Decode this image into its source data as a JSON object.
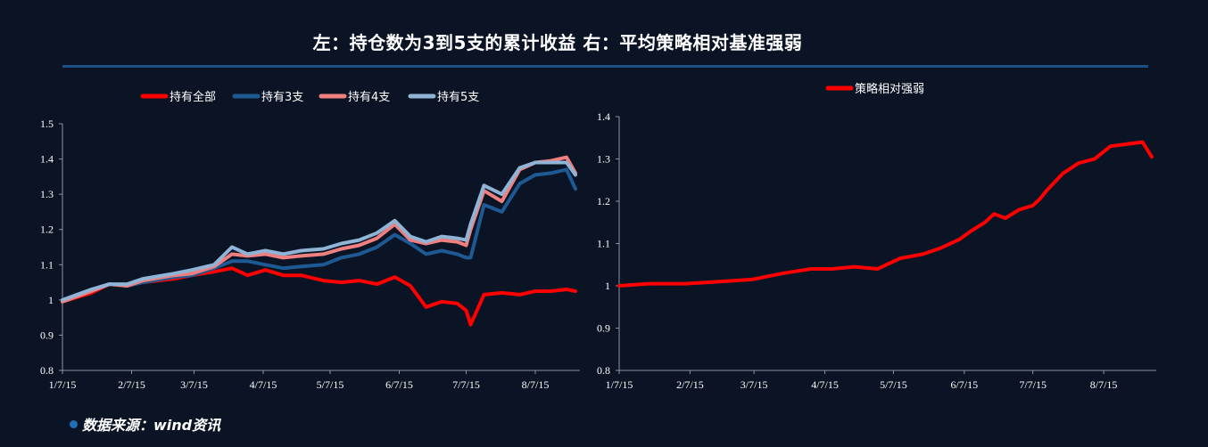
{
  "title": "左：持仓数为3到5支的累计收益  右：平均策略相对基准强弱",
  "source": "数据来源：wind资讯",
  "chart_data": [
    {
      "type": "line",
      "title": "",
      "xlabel": "",
      "ylabel": "",
      "x_tick_labels": [
        "1/7/15",
        "2/7/15",
        "3/7/15",
        "4/7/15",
        "5/7/15",
        "6/7/15",
        "7/7/15",
        "8/7/15"
      ],
      "y_tick_labels": [
        "0.8",
        "0.9",
        "1",
        "1.1",
        "1.2",
        "1.3",
        "1.4",
        "1.5"
      ],
      "ylim": [
        0.8,
        1.5
      ],
      "grid": false,
      "legend_position": "top",
      "x_dates": [
        "2015-01-07",
        "2015-01-20",
        "2015-01-28",
        "2015-02-05",
        "2015-02-12",
        "2015-02-26",
        "2015-03-06",
        "2015-03-16",
        "2015-03-24",
        "2015-03-31",
        "2015-04-08",
        "2015-04-16",
        "2015-04-24",
        "2015-05-04",
        "2015-05-12",
        "2015-05-20",
        "2015-05-28",
        "2015-06-05",
        "2015-06-12",
        "2015-06-19",
        "2015-06-26",
        "2015-07-03",
        "2015-07-07",
        "2015-07-09",
        "2015-07-15",
        "2015-07-23",
        "2015-07-31",
        "2015-08-07",
        "2015-08-14",
        "2015-08-21",
        "2015-08-25"
      ],
      "series": [
        {
          "name": "持有全部",
          "color": "#ff0000",
          "values": [
            0.995,
            1.02,
            1.045,
            1.04,
            1.05,
            1.06,
            1.07,
            1.08,
            1.09,
            1.07,
            1.085,
            1.07,
            1.07,
            1.055,
            1.05,
            1.055,
            1.045,
            1.065,
            1.04,
            0.98,
            0.995,
            0.99,
            0.97,
            0.93,
            1.015,
            1.02,
            1.015,
            1.025,
            1.025,
            1.03,
            1.025
          ]
        },
        {
          "name": "持有3支",
          "color": "#1d5a93",
          "values": [
            0.995,
            1.025,
            1.045,
            1.04,
            1.05,
            1.065,
            1.07,
            1.09,
            1.11,
            1.11,
            1.1,
            1.09,
            1.095,
            1.1,
            1.12,
            1.13,
            1.15,
            1.185,
            1.16,
            1.13,
            1.14,
            1.13,
            1.12,
            1.12,
            1.27,
            1.25,
            1.33,
            1.355,
            1.36,
            1.37,
            1.315
          ]
        },
        {
          "name": "持有4支",
          "color": "#f08080",
          "values": [
            0.995,
            1.025,
            1.045,
            1.04,
            1.055,
            1.07,
            1.075,
            1.095,
            1.13,
            1.125,
            1.13,
            1.12,
            1.125,
            1.13,
            1.145,
            1.155,
            1.175,
            1.215,
            1.17,
            1.16,
            1.17,
            1.165,
            1.155,
            1.2,
            1.31,
            1.28,
            1.37,
            1.39,
            1.395,
            1.405,
            1.36
          ]
        },
        {
          "name": "持有5支",
          "color": "#8fb4d6",
          "values": [
            1.0,
            1.03,
            1.045,
            1.045,
            1.06,
            1.075,
            1.085,
            1.1,
            1.15,
            1.13,
            1.14,
            1.13,
            1.14,
            1.145,
            1.16,
            1.17,
            1.19,
            1.225,
            1.18,
            1.165,
            1.18,
            1.175,
            1.17,
            1.215,
            1.325,
            1.3,
            1.375,
            1.39,
            1.39,
            1.39,
            1.355
          ]
        }
      ]
    },
    {
      "type": "line",
      "title": "",
      "xlabel": "",
      "ylabel": "",
      "x_tick_labels": [
        "1/7/15",
        "2/7/15",
        "3/7/15",
        "4/7/15",
        "5/7/15",
        "6/7/15",
        "7/7/15",
        "8/7/15"
      ],
      "y_tick_labels": [
        "0.8",
        "0.9",
        "1",
        "1.1",
        "1.2",
        "1.3",
        "1.4"
      ],
      "ylim": [
        0.8,
        1.4
      ],
      "grid": false,
      "legend_position": "top",
      "x_dates": [
        "2015-01-07",
        "2015-01-20",
        "2015-02-05",
        "2015-02-20",
        "2015-03-06",
        "2015-03-20",
        "2015-04-01",
        "2015-04-10",
        "2015-04-20",
        "2015-04-30",
        "2015-05-10",
        "2015-05-20",
        "2015-05-28",
        "2015-06-05",
        "2015-06-10",
        "2015-06-16",
        "2015-06-20",
        "2015-06-25",
        "2015-07-01",
        "2015-07-07",
        "2015-07-10",
        "2015-07-13",
        "2015-07-20",
        "2015-07-27",
        "2015-08-03",
        "2015-08-10",
        "2015-08-17",
        "2015-08-24",
        "2015-08-28"
      ],
      "series": [
        {
          "name": "策略相对强弱",
          "color": "#ff0000",
          "values": [
            1.0,
            1.005,
            1.005,
            1.01,
            1.015,
            1.03,
            1.04,
            1.04,
            1.045,
            1.04,
            1.065,
            1.075,
            1.09,
            1.11,
            1.13,
            1.15,
            1.17,
            1.16,
            1.18,
            1.19,
            1.205,
            1.225,
            1.265,
            1.29,
            1.3,
            1.33,
            1.335,
            1.34,
            1.305
          ]
        }
      ]
    }
  ]
}
